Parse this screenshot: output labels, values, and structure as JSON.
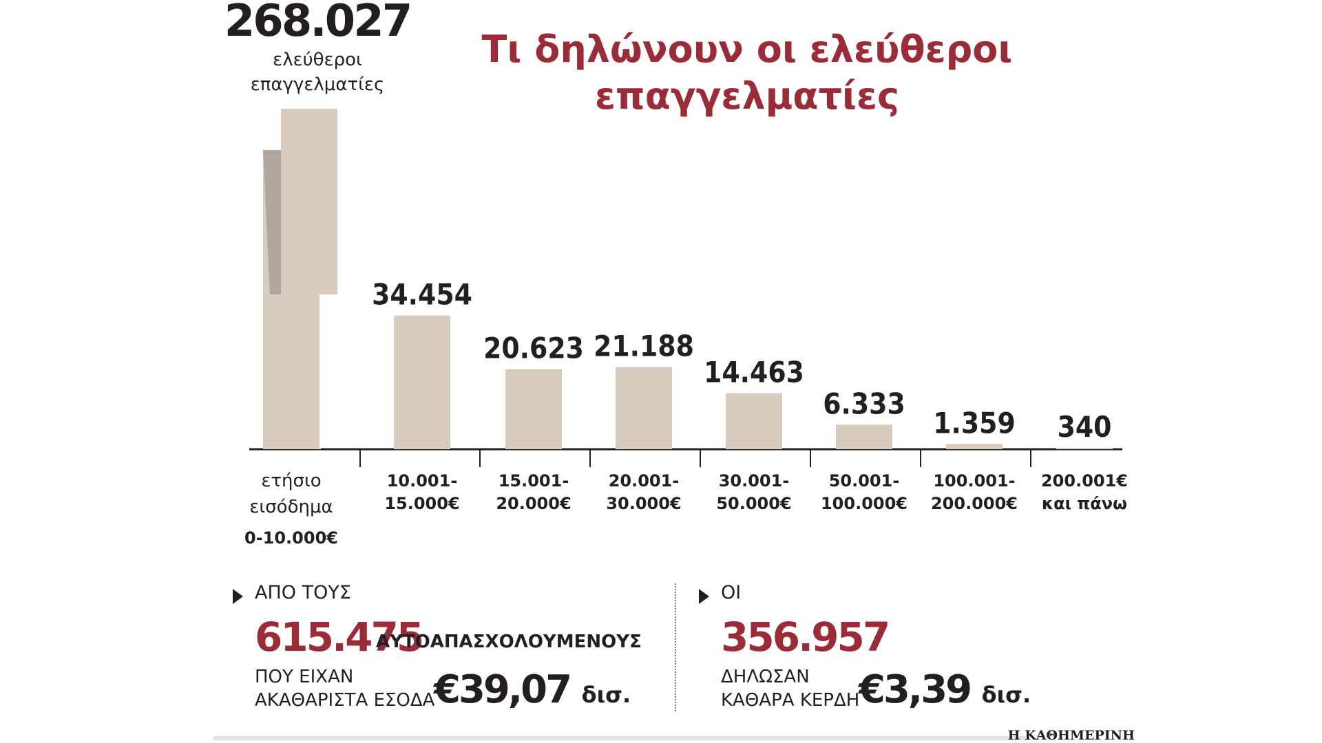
{
  "chart_data": {
    "type": "bar",
    "title": "Τι δηλώνουν οι ελεύθεροι επαγγελματίες",
    "xlabel": "ετήσιο εισόδημα",
    "categories": [
      "0-10.000€",
      "10.001-15.000€",
      "15.001-20.000€",
      "20.001-30.000€",
      "30.001-50.000€",
      "50.001-100.000€",
      "100.001-200.000€",
      "200.001€ και πάνω"
    ],
    "category_lines": [
      [
        "0-10.000€"
      ],
      [
        "10.001-",
        "15.000€"
      ],
      [
        "15.001-",
        "20.000€"
      ],
      [
        "20.001-",
        "30.000€"
      ],
      [
        "30.001-",
        "50.000€"
      ],
      [
        "50.001-",
        "100.000€"
      ],
      [
        "100.001-",
        "200.000€"
      ],
      [
        "200.001€",
        "και πάνω"
      ]
    ],
    "values": [
      268027,
      34454,
      20623,
      21188,
      14463,
      6333,
      1359,
      340
    ],
    "value_labels": [
      "268.027",
      "34.454",
      "20.623",
      "21.188",
      "14.463",
      "6.333",
      "1.359",
      "340"
    ],
    "first_bar_caption": [
      "ελεύθεροι",
      "επαγγελματίες"
    ],
    "first_bar_broken": true,
    "bar_color": "#d8cbbe",
    "title_color": "#9b2c37"
  },
  "stats": {
    "left": {
      "lead": "ΑΠΟ ΤΟΥΣ",
      "number": "615.475",
      "number_suffix": "ΑΥΤΟΑΠΑΣΧΟΛΟΥΜΕΝΟΥΣ",
      "desc_line1": "ΠΟΥ ΕΙΧΑΝ",
      "desc_line2": "ΑΚΑΘΑΡΙΣΤΑ ΕΣΟΔΑ",
      "amount": "€39,07",
      "amount_unit": "δισ."
    },
    "right": {
      "lead": "ΟΙ",
      "number": "356.957",
      "desc_line1": "ΔΗΛΩΣΑΝ",
      "desc_line2": "ΚΑΘΑΡΑ ΚΕΡΔΗ",
      "amount": "€3,39",
      "amount_unit": "δισ."
    }
  },
  "source": "Η ΚΑΘΗΜΕΡΙΝΗ"
}
